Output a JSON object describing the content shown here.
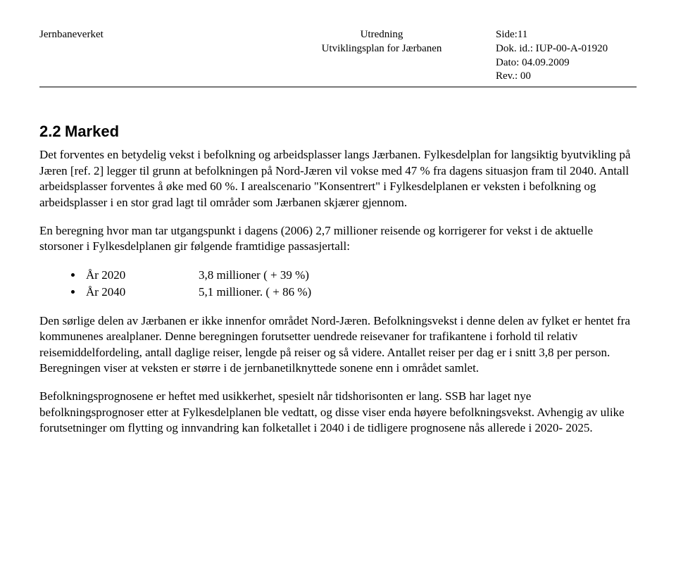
{
  "header": {
    "org": "Jernbaneverket",
    "title1": "Utredning",
    "title2": "Utviklingsplan for Jærbanen",
    "side_label": "Side:",
    "side_value": "11",
    "dokid_label": "Dok. id.:",
    "dokid_value": "IUP-00-A-01920",
    "dato_label": "Dato:",
    "dato_value": "04.09.2009",
    "rev_label": "Rev.:",
    "rev_value": "00"
  },
  "section": {
    "number": "2.2",
    "title": "Marked"
  },
  "para1": "Det forventes en betydelig vekst i befolkning og arbeidsplasser langs Jærbanen. Fylkesdelplan for langsiktig byutvikling på Jæren [ref. 2] legger til grunn at befolkningen på Nord-Jæren vil vokse med 47 % fra dagens situasjon fram til 2040. Antall arbeidsplasser forventes å øke med 60 %. I arealscenario \"Konsentrert\" i Fylkesdelplanen er veksten i befolkning og arbeidsplasser i en stor grad lagt til områder som Jærbanen skjærer gjennom.",
  "para2": "En beregning hvor man tar utgangspunkt i dagens (2006) 2,7 millioner reisende og korrigerer for vekst i de aktuelle storsoner i Fylkesdelplanen gir følgende framtidige passasjertall:",
  "bullets": [
    {
      "year": "År 2020",
      "value": "3,8 millioner  ( + 39 %)"
    },
    {
      "year": "År 2040",
      "value": "5,1 millioner. ( + 86 %)"
    }
  ],
  "para3": "Den sørlige delen av Jærbanen er ikke innenfor området Nord-Jæren. Befolkningsvekst i denne delen av fylket er hentet fra kommunenes arealplaner. Denne beregningen forutsetter uendrede reisevaner for trafikantene i forhold til relativ reisemiddelfordeling, antall daglige reiser, lengde på reiser og så videre. Antallet reiser per dag er i snitt 3,8 per person. Beregningen viser at veksten er større i de jernbanetilknyttede sonene enn i området samlet.",
  "para4": "Befolkningsprognosene er heftet med usikkerhet, spesielt når tidshorisonten er lang. SSB har laget nye befolkningsprognoser etter at Fylkesdelplanen ble vedtatt, og disse viser enda høyere befolkningsvekst. Avhengig av ulike forutsetninger om flytting og innvandring kan folketallet i 2040 i de tidligere prognosene nås allerede i 2020- 2025."
}
